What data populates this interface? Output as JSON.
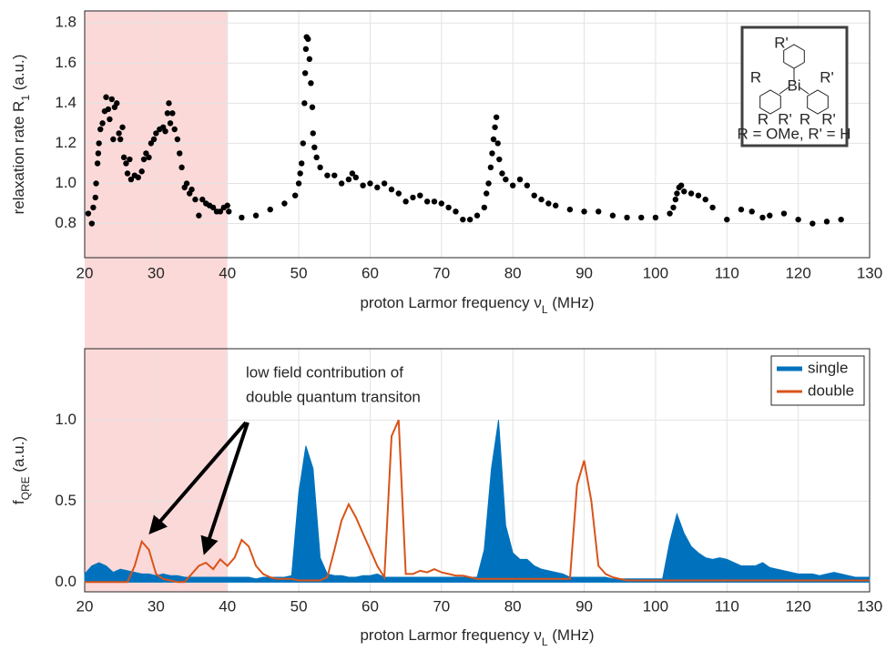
{
  "chart_data": [
    {
      "type": "scatter",
      "ylabel": [
        "relaxation rate R",
        "1",
        " (a.u.)"
      ],
      "xlabel": [
        "proton Larmor frequency ν",
        "L",
        " (MHz)"
      ],
      "x": [
        20.5,
        21,
        21.2,
        21.5,
        21.6,
        21.8,
        21.9,
        22,
        22.2,
        22.5,
        22.8,
        23,
        23.3,
        23.5,
        23.8,
        24,
        24.2,
        24.5,
        24.8,
        25,
        25.3,
        25.5,
        25.8,
        26,
        26.3,
        26.5,
        27,
        27.5,
        28,
        28.3,
        28.6,
        29,
        29.3,
        29.7,
        30,
        30.5,
        31,
        31.3,
        31.6,
        31.8,
        32,
        32.3,
        32.6,
        33,
        33.3,
        33.6,
        34,
        34.3,
        34.7,
        35,
        35.5,
        36,
        36.5,
        37,
        37.5,
        38,
        38.5,
        39,
        39.5,
        40,
        40.2,
        42,
        44,
        46,
        48,
        49.5,
        50,
        50.2,
        50.4,
        50.6,
        50.8,
        50.9,
        51,
        51.1,
        51.3,
        51.5,
        51.7,
        51.9,
        52,
        52.2,
        52.5,
        53,
        54,
        55,
        56,
        57,
        57.5,
        58,
        59,
        60,
        61,
        62,
        63,
        64,
        65,
        66,
        67,
        68,
        69,
        70,
        71,
        72,
        73,
        74,
        75,
        76,
        76.3,
        76.6,
        76.9,
        77.1,
        77.3,
        77.5,
        77.7,
        77.9,
        78.1,
        78.5,
        79,
        80,
        81,
        82,
        83,
        84,
        85,
        86,
        88,
        90,
        92,
        94,
        96,
        98,
        100,
        102,
        102.5,
        102.8,
        103,
        103.3,
        103.6,
        104,
        105,
        106,
        107,
        108,
        110,
        112,
        113.5,
        115,
        116,
        118,
        120,
        122,
        124,
        126
      ],
      "values": [
        0.85,
        0.8,
        0.88,
        0.93,
        1.0,
        1.1,
        1.15,
        1.2,
        1.27,
        1.3,
        1.36,
        1.43,
        1.37,
        1.32,
        1.42,
        1.22,
        1.38,
        1.4,
        1.25,
        1.22,
        1.28,
        1.13,
        1.1,
        1.05,
        1.12,
        1.02,
        1.04,
        1.03,
        1.06,
        1.12,
        1.15,
        1.13,
        1.2,
        1.22,
        1.25,
        1.27,
        1.28,
        1.26,
        1.35,
        1.4,
        1.3,
        1.35,
        1.27,
        1.22,
        1.15,
        1.08,
        0.98,
        1.0,
        0.95,
        0.97,
        0.92,
        0.84,
        0.92,
        0.9,
        0.89,
        0.88,
        0.86,
        0.86,
        0.88,
        0.89,
        0.86,
        0.83,
        0.84,
        0.87,
        0.9,
        0.94,
        1.0,
        1.05,
        1.1,
        1.2,
        1.4,
        1.55,
        1.67,
        1.73,
        1.72,
        1.62,
        1.5,
        1.38,
        1.25,
        1.18,
        1.13,
        1.08,
        1.04,
        1.04,
        1.0,
        1.02,
        1.05,
        1.03,
        0.99,
        1.0,
        0.98,
        1.0,
        0.97,
        0.95,
        0.91,
        0.93,
        0.94,
        0.91,
        0.91,
        0.9,
        0.88,
        0.86,
        0.82,
        0.82,
        0.84,
        0.88,
        0.95,
        1.0,
        1.08,
        1.15,
        1.22,
        1.28,
        1.33,
        1.2,
        1.12,
        1.05,
        1.02,
        0.99,
        1.02,
        0.99,
        0.94,
        0.92,
        0.9,
        0.89,
        0.87,
        0.86,
        0.86,
        0.84,
        0.83,
        0.83,
        0.83,
        0.85,
        0.88,
        0.92,
        0.95,
        0.98,
        0.99,
        0.96,
        0.95,
        0.94,
        0.92,
        0.88,
        0.82,
        0.87,
        0.86,
        0.83,
        0.84,
        0.85,
        0.82,
        0.8,
        0.81,
        0.82
      ],
      "color": "#000000",
      "xlim": [
        20,
        130
      ],
      "xticks": [
        20,
        30,
        40,
        50,
        60,
        70,
        80,
        90,
        100,
        110,
        120,
        130
      ],
      "ylim": [
        0.63,
        1.86
      ],
      "yticks": [
        0.8,
        {
          "value": 1,
          "label": "1.0"
        },
        1.2,
        1.4,
        1.6,
        1.8
      ],
      "grid": true,
      "highlight": [
        20,
        40
      ],
      "highlight_color": "#fbd9d9",
      "inset": {
        "caption": "R = OMe, R' = H",
        "labels": [
          "R'",
          "R",
          "Bi",
          "R'",
          "R",
          "R'",
          "R",
          "R'"
        ]
      }
    },
    {
      "type": "area",
      "ylabel": [
        "f",
        "QRE",
        " (a.u.)"
      ],
      "xlabel": [
        "proton Larmor frequency ν",
        "L",
        " (MHz)"
      ],
      "x": [
        20,
        21,
        22,
        23,
        24,
        25,
        26,
        27,
        28,
        29,
        30,
        31,
        32,
        33,
        34,
        35,
        36,
        37,
        38,
        39,
        40,
        41,
        42,
        43,
        44,
        45,
        46,
        47,
        48,
        49,
        50,
        51,
        52,
        53,
        54,
        55,
        56,
        57,
        58,
        59,
        60,
        61,
        62,
        63,
        64,
        65,
        66,
        67,
        68,
        69,
        70,
        71,
        72,
        73,
        74,
        75,
        76,
        77,
        78,
        79,
        80,
        81,
        82,
        83,
        84,
        85,
        86,
        87,
        88,
        89,
        90,
        91,
        92,
        93,
        94,
        95,
        96,
        97,
        98,
        99,
        100,
        101,
        102,
        103,
        104,
        105,
        106,
        107,
        108,
        109,
        110,
        111,
        112,
        113,
        114,
        115,
        116,
        117,
        118,
        119,
        120,
        121,
        122,
        123,
        124,
        125,
        126,
        127,
        128,
        129,
        130
      ],
      "series": [
        {
          "name": "single",
          "color": "#0072bd",
          "kind": "area",
          "values": [
            0.05,
            0.1,
            0.12,
            0.1,
            0.06,
            0.08,
            0.07,
            0.06,
            0.05,
            0.05,
            0.04,
            0.05,
            0.04,
            0.04,
            0.03,
            0.03,
            0.03,
            0.03,
            0.03,
            0.03,
            0.03,
            0.03,
            0.03,
            0.03,
            0.02,
            0.03,
            0.03,
            0.03,
            0.03,
            0.04,
            0.55,
            0.84,
            0.7,
            0.15,
            0.05,
            0.04,
            0.04,
            0.03,
            0.03,
            0.04,
            0.04,
            0.05,
            0.03,
            0.03,
            0.03,
            0.03,
            0.03,
            0.03,
            0.03,
            0.03,
            0.03,
            0.03,
            0.03,
            0.03,
            0.03,
            0.03,
            0.2,
            0.7,
            1.0,
            0.35,
            0.18,
            0.14,
            0.14,
            0.1,
            0.08,
            0.07,
            0.06,
            0.05,
            0.03,
            0.03,
            0.03,
            0.03,
            0.03,
            0.03,
            0.02,
            0.02,
            0.02,
            0.02,
            0.02,
            0.02,
            0.02,
            0.02,
            0.25,
            0.42,
            0.3,
            0.22,
            0.18,
            0.15,
            0.14,
            0.15,
            0.14,
            0.12,
            0.1,
            0.1,
            0.1,
            0.12,
            0.09,
            0.08,
            0.07,
            0.06,
            0.05,
            0.05,
            0.05,
            0.04,
            0.05,
            0.06,
            0.05,
            0.04,
            0.03,
            0.03,
            0.03
          ]
        },
        {
          "name": "double",
          "color": "#d95319",
          "kind": "line",
          "values": [
            0,
            0,
            0,
            0,
            0,
            0,
            0,
            0.1,
            0.25,
            0.2,
            0.05,
            0.02,
            0.01,
            0,
            0,
            0.05,
            0.1,
            0.12,
            0.08,
            0.14,
            0.1,
            0.15,
            0.26,
            0.22,
            0.1,
            0.05,
            0.03,
            0.02,
            0.02,
            0.02,
            0.01,
            0.01,
            0.01,
            0.01,
            0.03,
            0.2,
            0.38,
            0.48,
            0.4,
            0.3,
            0.2,
            0.1,
            0.03,
            0.9,
            1.0,
            0.05,
            0.05,
            0.07,
            0.06,
            0.08,
            0.06,
            0.05,
            0.04,
            0.04,
            0.03,
            0.02,
            0.02,
            0.02,
            0.02,
            0.02,
            0.02,
            0.02,
            0.02,
            0.02,
            0.02,
            0.02,
            0.02,
            0.02,
            0.02,
            0.6,
            0.75,
            0.5,
            0.1,
            0.05,
            0.03,
            0.02,
            0.01,
            0.01,
            0.01,
            0.01,
            0.01,
            0.01,
            0.01,
            0.01,
            0.01,
            0.01,
            0.01,
            0.01,
            0.01,
            0.01,
            0.01,
            0.01,
            0.01,
            0.01,
            0.01,
            0.01,
            0.01,
            0.01,
            0.01,
            0.01,
            0.01,
            0.01,
            0.01,
            0.01,
            0.01,
            0.01,
            0.01,
            0.01,
            0.01,
            0.01,
            0.01
          ]
        }
      ],
      "xlim": [
        20,
        130
      ],
      "xticks": [
        20,
        30,
        40,
        50,
        60,
        70,
        80,
        90,
        100,
        110,
        120,
        130
      ],
      "ylim": [
        -0.06,
        1.44
      ],
      "yticks": [
        {
          "value": 0,
          "label": "0.0"
        },
        0.5,
        {
          "value": 1,
          "label": "1.0"
        }
      ],
      "grid": true,
      "legend": "upper right",
      "annotation": [
        "low field contribution of",
        "double quantum transiton"
      ]
    }
  ]
}
